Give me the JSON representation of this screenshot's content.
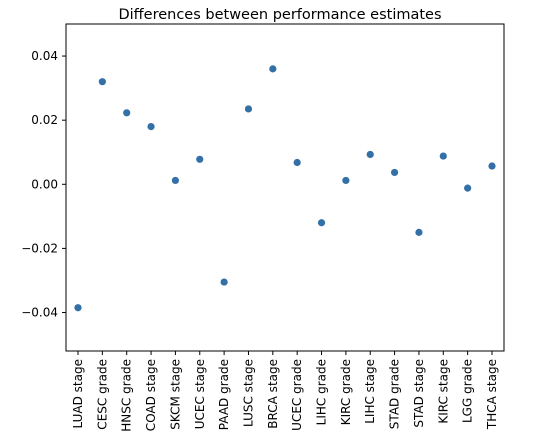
{
  "chart_data": {
    "type": "scatter",
    "title": "Differences between performance estimates",
    "xlabel": "",
    "ylabel": "",
    "categories": [
      "LUAD stage",
      "CESC grade",
      "HNSC grade",
      "COAD stage",
      "SKCM stage",
      "UCEC stage",
      "PAAD grade",
      "LUSC stage",
      "BRCA stage",
      "UCEC grade",
      "LIHC grade",
      "KIRC grade",
      "LIHC stage",
      "STAD grade",
      "STAD stage",
      "KIRC stage",
      "LGG grade",
      "THCA stage"
    ],
    "values": [
      -0.0385,
      0.032,
      0.0223,
      0.018,
      0.0012,
      0.0078,
      -0.0305,
      0.0235,
      0.036,
      0.0068,
      -0.012,
      0.0012,
      0.0093,
      0.0037,
      -0.015,
      0.0088,
      -0.0012,
      0.0057
    ],
    "ylim": [
      -0.052,
      0.05
    ],
    "yticks": [
      -0.04,
      -0.02,
      0.0,
      0.02,
      0.04
    ],
    "ytick_labels": [
      "−0.04",
      "−0.02",
      "0.00",
      "0.02",
      "0.04"
    ],
    "grid": false,
    "marker_color": "#3470a8"
  }
}
